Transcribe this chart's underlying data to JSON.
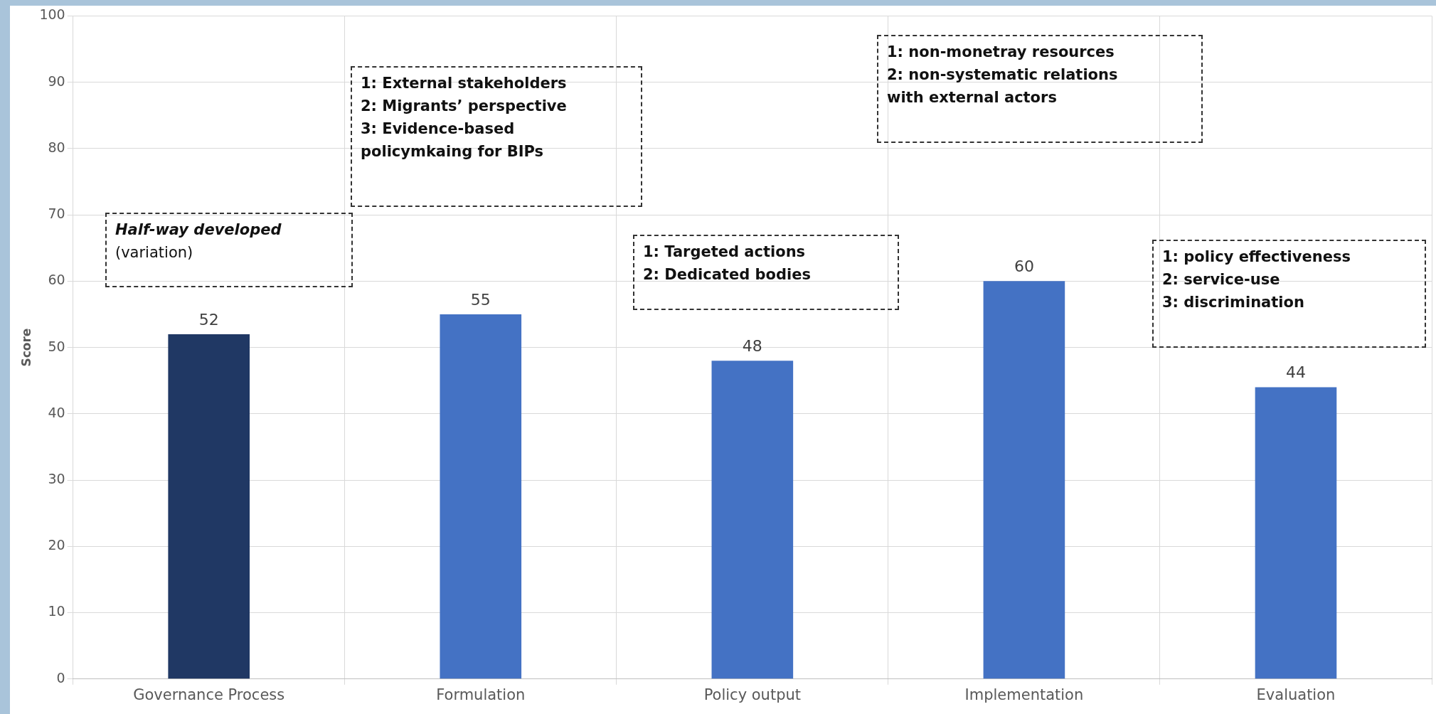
{
  "chart_data": {
    "type": "bar",
    "ylabel": "Score",
    "categories": [
      "Governance Process",
      "Formulation",
      "Policy output",
      "Implementation",
      "Evaluation"
    ],
    "values": [
      52,
      55,
      48,
      60,
      44
    ],
    "colors": [
      "#203864",
      "#4472c4",
      "#4472c4",
      "#4472c4",
      "#4472c4"
    ],
    "ylim": [
      0,
      100
    ],
    "yticks": [
      0,
      10,
      20,
      30,
      40,
      50,
      60,
      70,
      80,
      90,
      100
    ],
    "grid": true,
    "data_labels": true,
    "legend": false,
    "annotations": [
      "Half-way developed\n(variation)",
      "1: External stakeholders\n2: Migrants’ perspective\n3: Evidence-based\npolicymkaing for BIPs",
      "1: Targeted actions\n2: Dedicated bodies",
      "1: non-monetray resources\n2: non-systematic relations\nwith external actors",
      "1: policy effectiveness\n2: service-use\n3: discrimination"
    ]
  }
}
